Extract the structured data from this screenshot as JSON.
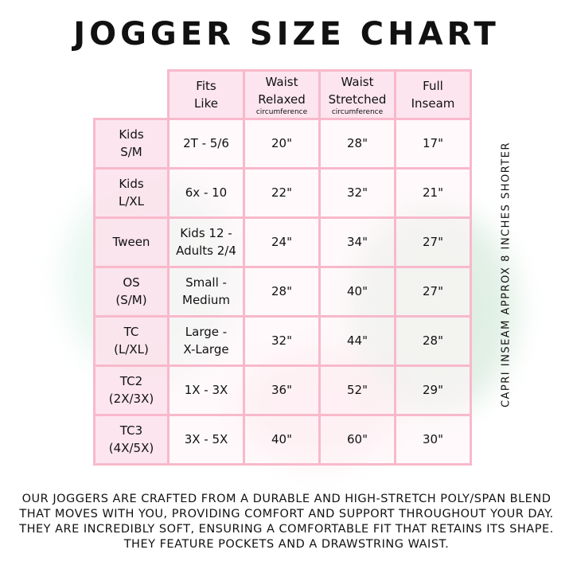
{
  "title": "JOGGER SIZE CHART",
  "table": {
    "headers": [
      {
        "line1": "Fits",
        "line2": "Like",
        "sub": ""
      },
      {
        "line1": "Waist",
        "line2": "Relaxed",
        "sub": "circumference"
      },
      {
        "line1": "Waist",
        "line2": "Stretched",
        "sub": "circumference"
      },
      {
        "line1": "Full",
        "line2": "Inseam",
        "sub": ""
      }
    ],
    "rows": [
      {
        "size1": "Kids",
        "size2": "S/M",
        "fits1": "2T - 5/6",
        "fits2": "",
        "relaxed": "20\"",
        "stretched": "28\"",
        "inseam": "17\""
      },
      {
        "size1": "Kids",
        "size2": "L/XL",
        "fits1": "6x - 10",
        "fits2": "",
        "relaxed": "22\"",
        "stretched": "32\"",
        "inseam": "21\""
      },
      {
        "size1": "Tween",
        "size2": "",
        "fits1": "Kids 12 -",
        "fits2": "Adults 2/4",
        "relaxed": "24\"",
        "stretched": "34\"",
        "inseam": "27\""
      },
      {
        "size1": "OS",
        "size2": "(S/M)",
        "fits1": "Small -",
        "fits2": "Medium",
        "relaxed": "28\"",
        "stretched": "40\"",
        "inseam": "27\""
      },
      {
        "size1": "TC",
        "size2": "(L/XL)",
        "fits1": "Large -",
        "fits2": "X-Large",
        "relaxed": "32\"",
        "stretched": "44\"",
        "inseam": "28\""
      },
      {
        "size1": "TC2",
        "size2": "(2X/3X)",
        "fits1": "1X - 3X",
        "fits2": "",
        "relaxed": "36\"",
        "stretched": "52\"",
        "inseam": "29\""
      },
      {
        "size1": "TC3",
        "size2": "(4X/5X)",
        "fits1": "3X - 5X",
        "fits2": "",
        "relaxed": "40\"",
        "stretched": "60\"",
        "inseam": "30\""
      }
    ]
  },
  "side_note": "CAPRI INSEAM APPROX 8 INCHES SHORTER",
  "description": "OUR JOGGERS ARE CRAFTED FROM A DURABLE AND HIGH-STRETCH POLY/SPAN BLEND THAT MOVES WITH YOU, PROVIDING COMFORT AND SUPPORT THROUGHOUT YOUR DAY. THEY ARE INCREDIBLY SOFT, ENSURING A COMFORTABLE FIT THAT RETAINS ITS SHAPE. THEY FEATURE POCKETS AND A DRAWSTRING WAIST.",
  "colors": {
    "border": "#f8b9cb",
    "header_fill": "#fce2ec"
  }
}
